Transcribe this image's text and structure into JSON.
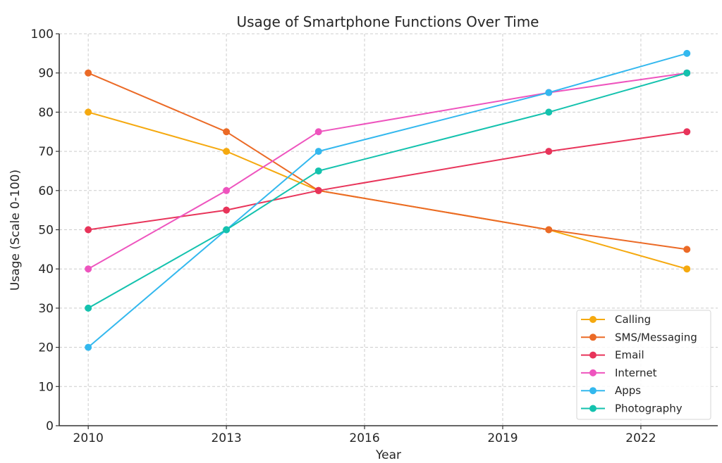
{
  "chart_data": {
    "type": "line",
    "title": "Usage of Smartphone Functions Over Time",
    "xlabel": "Year",
    "ylabel": "Usage (Scale 0-100)",
    "x": [
      2010,
      2013,
      2015,
      2020,
      2023
    ],
    "xticks": [
      2010,
      2013,
      2016,
      2019,
      2022
    ],
    "yticks": [
      0,
      10,
      20,
      30,
      40,
      50,
      60,
      70,
      80,
      90,
      100
    ],
    "xlim": [
      2009.37,
      2023.67
    ],
    "ylim": [
      0,
      100
    ],
    "grid": true,
    "legend_position": "lower-right",
    "series": [
      {
        "name": "Calling",
        "color": "#F5A90F",
        "values": [
          80,
          70,
          60,
          50,
          40
        ]
      },
      {
        "name": "SMS/Messaging",
        "color": "#EB6A26",
        "values": [
          90,
          75,
          60,
          50,
          45
        ]
      },
      {
        "name": "Email",
        "color": "#E8345A",
        "values": [
          50,
          55,
          60,
          70,
          75
        ]
      },
      {
        "name": "Internet",
        "color": "#EE54BE",
        "values": [
          40,
          60,
          75,
          85,
          90
        ]
      },
      {
        "name": "Apps",
        "color": "#33B8EE",
        "values": [
          20,
          50,
          70,
          85,
          95
        ]
      },
      {
        "name": "Photography",
        "color": "#14C2AE",
        "values": [
          30,
          50,
          65,
          80,
          90
        ]
      }
    ]
  }
}
